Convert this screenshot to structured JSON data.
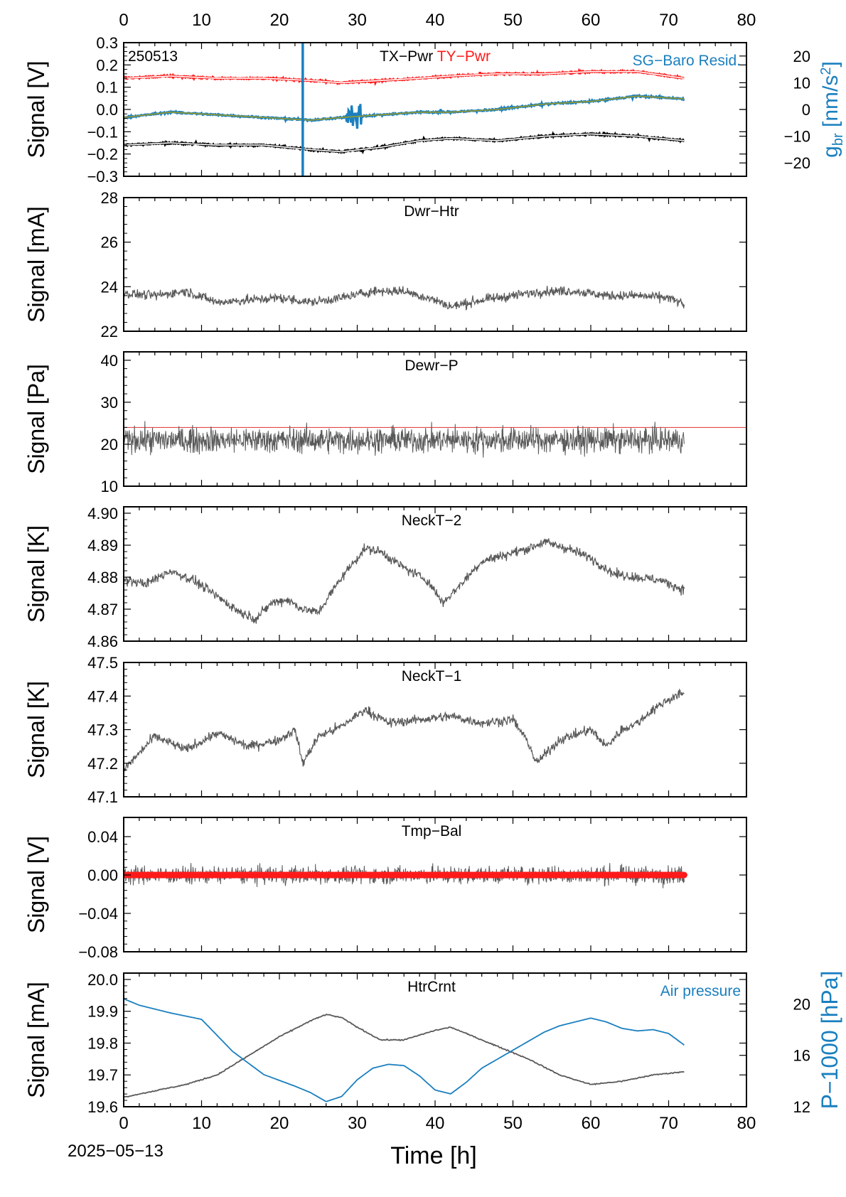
{
  "figure": {
    "date_label": "2025−05−13",
    "xlabel": "Time [h]",
    "x_ticks": [
      0,
      10,
      20,
      30,
      40,
      50,
      60,
      70,
      80
    ],
    "xlim": [
      0,
      80
    ],
    "top_axis_ticks": true
  },
  "colors": {
    "black_series": "#000000",
    "red_series": "#ff1a1a",
    "blue_series": "#1a7fbf",
    "gray_series": "#595959",
    "olive_fit": "#9a9a2a",
    "ref_line": "#e03030",
    "white_fit": "#ffffff"
  },
  "chart_data": [
    {
      "type": "line",
      "panel_label": "250513",
      "title_parts": [
        "TX−Pwr",
        "TY−Pwr"
      ],
      "right_label": "SG−Baro Resid.",
      "ylabel": "Signal [V]",
      "ylim": [
        -0.3,
        0.3
      ],
      "y_ticks": [
        -0.3,
        -0.2,
        -0.1,
        0.0,
        0.1,
        0.2,
        0.3
      ],
      "y_tick_labels": [
        "−0.3",
        "−0.2",
        "−0.1",
        "0.0",
        "0.1",
        "0.2",
        "0.3"
      ],
      "y2label_main": "g",
      "y2label_sub": "br",
      "y2label_unit": " [nm/s",
      "y2label_sup": "2",
      "y2label_end": "]",
      "y2lim": [
        -25,
        25
      ],
      "y2_ticks": [
        -20,
        -10,
        0,
        10,
        20
      ],
      "y2_tick_labels": [
        "−20",
        "−10",
        "0",
        "10",
        "20"
      ],
      "vline_x": 23,
      "series": [
        {
          "name": "TX−Pwr",
          "color": "black",
          "x": [
            0,
            6,
            12,
            18,
            24,
            28,
            33,
            38,
            42,
            48,
            54,
            60,
            66,
            72
          ],
          "values": [
            -0.16,
            -0.15,
            -0.16,
            -0.16,
            -0.18,
            -0.19,
            -0.17,
            -0.14,
            -0.13,
            -0.14,
            -0.12,
            -0.11,
            -0.12,
            -0.14
          ]
        },
        {
          "name": "TY−Pwr",
          "color": "red",
          "x": [
            0,
            6,
            12,
            18,
            24,
            28,
            33,
            38,
            42,
            48,
            54,
            60,
            66,
            72
          ],
          "values": [
            0.14,
            0.15,
            0.14,
            0.14,
            0.13,
            0.12,
            0.13,
            0.14,
            0.15,
            0.16,
            0.16,
            0.17,
            0.17,
            0.14
          ]
        },
        {
          "name": "SG−Baro Resid.",
          "color": "blue",
          "axis": "right",
          "x": [
            0,
            6,
            12,
            18,
            24,
            28,
            33,
            38,
            42,
            48,
            54,
            60,
            66,
            72
          ],
          "values": [
            -3,
            -1,
            -2,
            -3,
            -4,
            -3,
            -2,
            -1,
            -1,
            0,
            2,
            3,
            5,
            4
          ]
        }
      ]
    },
    {
      "type": "line",
      "title": "Dwr−Htr",
      "ylabel": "Signal [mA]",
      "ylim": [
        22,
        28
      ],
      "y_ticks": [
        22,
        24,
        26,
        28
      ],
      "y_tick_labels": [
        "22",
        "24",
        "26",
        "28"
      ],
      "series": [
        {
          "x": [
            0,
            4,
            8,
            12,
            16,
            20,
            24,
            28,
            32,
            36,
            40,
            42,
            46,
            50,
            54,
            58,
            62,
            66,
            70,
            72
          ],
          "values": [
            23.7,
            23.6,
            23.8,
            23.3,
            23.4,
            23.5,
            23.3,
            23.5,
            23.8,
            23.8,
            23.4,
            23.1,
            23.4,
            23.6,
            23.8,
            23.8,
            23.6,
            23.6,
            23.5,
            23.2
          ]
        }
      ]
    },
    {
      "type": "line",
      "title": "Dewr−P",
      "ylabel": "Signal [Pa]",
      "ylim": [
        10,
        42
      ],
      "y_ticks": [
        10,
        20,
        30,
        40
      ],
      "y_tick_labels": [
        "10",
        "20",
        "30",
        "40"
      ],
      "reference_y": 24,
      "series": [
        {
          "x": [
            0,
            72
          ],
          "values": [
            21,
            21
          ],
          "noise_amplitude": 4
        }
      ]
    },
    {
      "type": "line",
      "title": "NeckT−2",
      "ylabel": "Signal [K]",
      "ylim": [
        4.86,
        4.902
      ],
      "y_ticks": [
        4.86,
        4.87,
        4.88,
        4.89,
        4.9
      ],
      "y_tick_labels": [
        "4.86",
        "4.87",
        "4.88",
        "4.89",
        "4.90"
      ],
      "series": [
        {
          "x": [
            0,
            3,
            6,
            9,
            12,
            15,
            17,
            19,
            21,
            23,
            25,
            28,
            31,
            33,
            36,
            39,
            41,
            43,
            46,
            49,
            52,
            54,
            57,
            60,
            63,
            66,
            69,
            72
          ],
          "values": [
            4.879,
            4.878,
            4.882,
            4.879,
            4.874,
            4.869,
            4.867,
            4.872,
            4.873,
            4.87,
            4.869,
            4.88,
            4.889,
            4.888,
            4.883,
            4.879,
            4.872,
            4.877,
            4.885,
            4.887,
            4.889,
            4.891,
            4.889,
            4.886,
            4.881,
            4.88,
            4.879,
            4.876
          ]
        }
      ]
    },
    {
      "type": "line",
      "title": "NeckT−1",
      "ylabel": "Signal [K]",
      "ylim": [
        47.1,
        47.5
      ],
      "y_ticks": [
        47.1,
        47.2,
        47.3,
        47.4,
        47.5
      ],
      "y_tick_labels": [
        "47.1",
        "47.2",
        "47.3",
        "47.4",
        "47.5"
      ],
      "series": [
        {
          "x": [
            0,
            4,
            8,
            12,
            16,
            20,
            22,
            23,
            25,
            28,
            31,
            34,
            38,
            42,
            46,
            50,
            52,
            53,
            56,
            60,
            62,
            64,
            66,
            68,
            70,
            72
          ],
          "values": [
            47.18,
            47.28,
            47.24,
            47.29,
            47.25,
            47.27,
            47.3,
            47.2,
            47.28,
            47.31,
            47.36,
            47.32,
            47.33,
            47.34,
            47.32,
            47.33,
            47.26,
            47.2,
            47.27,
            47.3,
            47.25,
            47.3,
            47.32,
            47.36,
            47.39,
            47.41
          ]
        }
      ]
    },
    {
      "type": "line",
      "title": "Tmp−Bal",
      "ylabel": "Signal [V]",
      "ylim": [
        -0.08,
        0.06
      ],
      "y_ticks": [
        -0.08,
        -0.04,
        0.0,
        0.04
      ],
      "y_tick_labels": [
        "−0.08",
        "−0.04",
        "0.00",
        "0.04"
      ],
      "series": [
        {
          "color": "gray",
          "x": [
            0,
            72
          ],
          "values": [
            0.0,
            0.0
          ],
          "noise_amplitude": 0.012
        },
        {
          "color": "red",
          "x": [
            0,
            72
          ],
          "values": [
            0.0,
            0.0
          ]
        }
      ]
    },
    {
      "type": "line",
      "title": "HtrCrnt",
      "right_label": "Air pressure",
      "ylabel": "Signal [mA]",
      "ylim": [
        19.6,
        20.02
      ],
      "y_ticks": [
        19.6,
        19.7,
        19.8,
        19.9,
        20.0
      ],
      "y_tick_labels": [
        "19.6",
        "19.7",
        "19.8",
        "19.9",
        "20.0"
      ],
      "y2label": "P−1000 [hPa]",
      "y2lim": [
        12,
        22.4
      ],
      "y2_ticks": [
        12,
        16,
        20
      ],
      "y2_tick_labels": [
        "12",
        "16",
        "20"
      ],
      "series": [
        {
          "name": "HtrCrnt",
          "color": "gray",
          "x": [
            0,
            4,
            8,
            12,
            16,
            20,
            24,
            26,
            28,
            30,
            33,
            36,
            40,
            42,
            45,
            48,
            52,
            56,
            60,
            64,
            68,
            72
          ],
          "values": [
            19.63,
            19.65,
            19.67,
            19.7,
            19.76,
            19.82,
            19.87,
            19.89,
            19.88,
            19.85,
            19.81,
            19.81,
            19.84,
            19.85,
            19.82,
            19.79,
            19.75,
            19.7,
            19.67,
            19.68,
            19.7,
            19.71
          ]
        },
        {
          "name": "Air pressure",
          "color": "blue",
          "axis": "right",
          "x": [
            0,
            2,
            6,
            10,
            14,
            18,
            22,
            24,
            26,
            28,
            30,
            32,
            34,
            36,
            38,
            40,
            42,
            44,
            46,
            50,
            54,
            56,
            58,
            60,
            62,
            64,
            66,
            68,
            70,
            72
          ],
          "values": [
            20.4,
            19.9,
            19.3,
            18.8,
            16.3,
            14.5,
            13.6,
            13.1,
            12.4,
            12.8,
            14.1,
            15.0,
            15.3,
            15.2,
            14.4,
            13.3,
            13.0,
            13.9,
            15.0,
            16.4,
            17.8,
            18.3,
            18.6,
            18.9,
            18.6,
            18.1,
            17.9,
            18.0,
            17.7,
            16.8
          ]
        }
      ]
    }
  ]
}
